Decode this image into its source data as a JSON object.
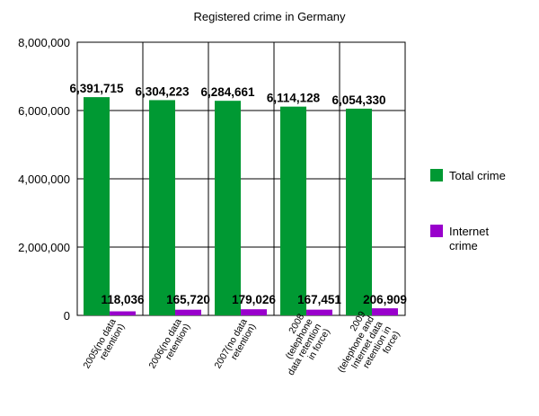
{
  "chart_data": {
    "type": "bar",
    "title": "Registered crime in Germany",
    "xlabel": "",
    "ylabel": "",
    "ylim": [
      0,
      8000000
    ],
    "yticks": [
      0,
      2000000,
      4000000,
      6000000,
      8000000
    ],
    "ytick_labels": [
      "0",
      "2,000,000",
      "4,000,000",
      "6,000,000",
      "8,000,000"
    ],
    "grid": true,
    "legend_position": "right",
    "categories": [
      [
        "2005(no data",
        "retention)"
      ],
      [
        "2006(no data",
        "retention)"
      ],
      [
        "2007(no data",
        "retention)"
      ],
      [
        "2008",
        "(telephone",
        "data retention",
        "in force)"
      ],
      [
        "2009",
        "(telephone and",
        "Internet data",
        "retention in",
        "force)"
      ]
    ],
    "series": [
      {
        "name": "Total crime",
        "legend_lines": [
          "Total crime"
        ],
        "color": "#009933",
        "values": [
          6391715,
          6304223,
          6284661,
          6114128,
          6054330
        ],
        "labels": [
          "6,391,715",
          "6,304,223",
          "6,284,661",
          "6,114,128",
          "6,054,330"
        ]
      },
      {
        "name": "Internet crime",
        "legend_lines": [
          "Internet",
          "crime"
        ],
        "color": "#9900cc",
        "values": [
          118036,
          165720,
          179026,
          167451,
          206909
        ],
        "labels": [
          "118,036",
          "165,720",
          "179,026",
          "167,451",
          "206,909"
        ]
      }
    ]
  }
}
